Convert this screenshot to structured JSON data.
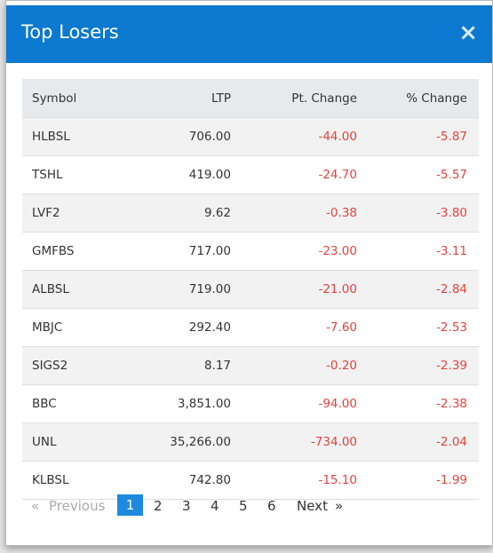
{
  "modal": {
    "title": "Top Losers",
    "close": "×",
    "table": {
      "columns": [
        "Symbol",
        "LTP",
        "Pt. Change",
        "% Change"
      ],
      "rows": [
        [
          "HLBSL",
          "706.00",
          "-44.00",
          "-5.87"
        ],
        [
          "TSHL",
          "419.00",
          "-24.70",
          "-5.57"
        ],
        [
          "LVF2",
          "9.62",
          "-0.38",
          "-3.80"
        ],
        [
          "GMFBS",
          "717.00",
          "-23.00",
          "-3.11"
        ],
        [
          "ALBSL",
          "719.00",
          "-21.00",
          "-2.84"
        ],
        [
          "MBJC",
          "292.40",
          "-7.60",
          "-2.53"
        ],
        [
          "SIGS2",
          "8.17",
          "-0.20",
          "-2.39"
        ],
        [
          "BBC",
          "3,851.00",
          "-94.00",
          "-2.38"
        ],
        [
          "UNL",
          "35,266.00",
          "-734.00",
          "-2.04"
        ],
        [
          "KLBSL",
          "742.80",
          "-15.10",
          "-1.99"
        ]
      ]
    },
    "pagination": {
      "first": "«",
      "previous": "Previous",
      "pages": [
        "1",
        "2",
        "3",
        "4",
        "5",
        "6"
      ],
      "next": "Next",
      "last": "»"
    }
  }
}
